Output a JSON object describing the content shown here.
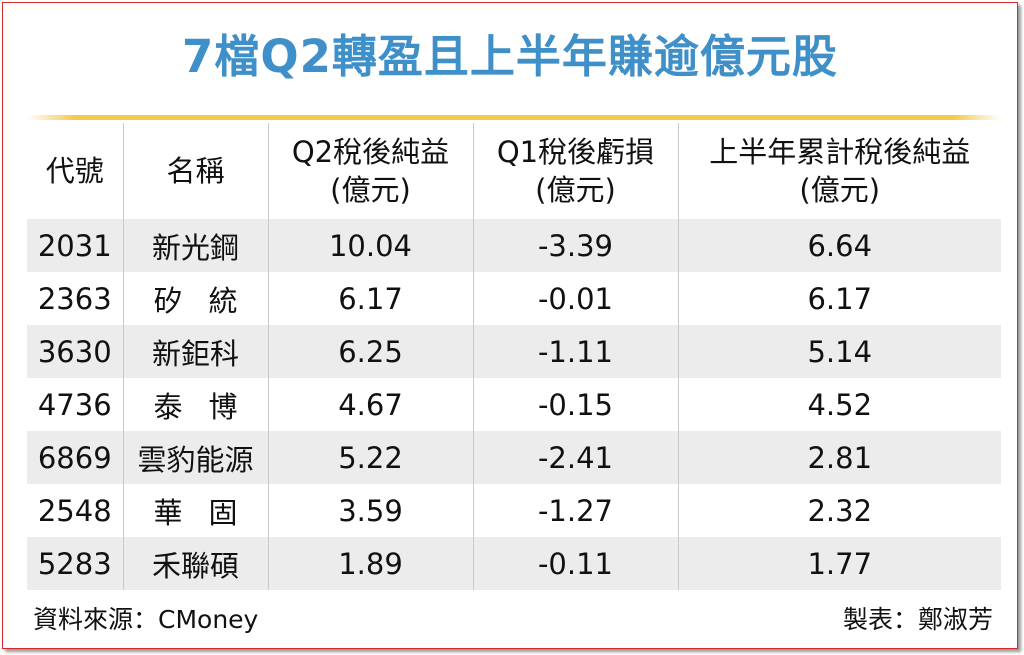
{
  "title": "7檔Q2轉盈且上半年賺逾億元股",
  "columns": {
    "code": "代號",
    "name": "名稱",
    "q2_line1": "Q2稅後純益",
    "q2_line2": "(億元)",
    "q1_line1": "Q1稅後虧損",
    "q1_line2": "(億元)",
    "h1_line1": "上半年累計稅後純益",
    "h1_line2": "(億元)"
  },
  "rows": [
    {
      "code": "2031",
      "name": "新光鋼",
      "q2": "10.04",
      "q1": "-3.39",
      "h1": "6.64"
    },
    {
      "code": "2363",
      "name": "矽統",
      "q2": "6.17",
      "q1": "-0.01",
      "h1": "6.17"
    },
    {
      "code": "3630",
      "name": "新鉅科",
      "q2": "6.25",
      "q1": "-1.11",
      "h1": "5.14"
    },
    {
      "code": "4736",
      "name": "泰博",
      "q2": "4.67",
      "q1": "-0.15",
      "h1": "4.52"
    },
    {
      "code": "6869",
      "name": "雲豹能源",
      "q2": "5.22",
      "q1": "-2.41",
      "h1": "2.81"
    },
    {
      "code": "2548",
      "name": "華固",
      "q2": "3.59",
      "q1": "-1.27",
      "h1": "2.32"
    },
    {
      "code": "5283",
      "name": "禾聯碩",
      "q2": "1.89",
      "q1": "-0.11",
      "h1": "1.77"
    }
  ],
  "footer": {
    "source": "資料來源：CMoney",
    "maker": "製表：鄭淑芳"
  },
  "colors": {
    "title": "#3f8fc9",
    "rule": "#f2c94a",
    "frame": "#d42a2a",
    "stripe": "#ececec"
  }
}
